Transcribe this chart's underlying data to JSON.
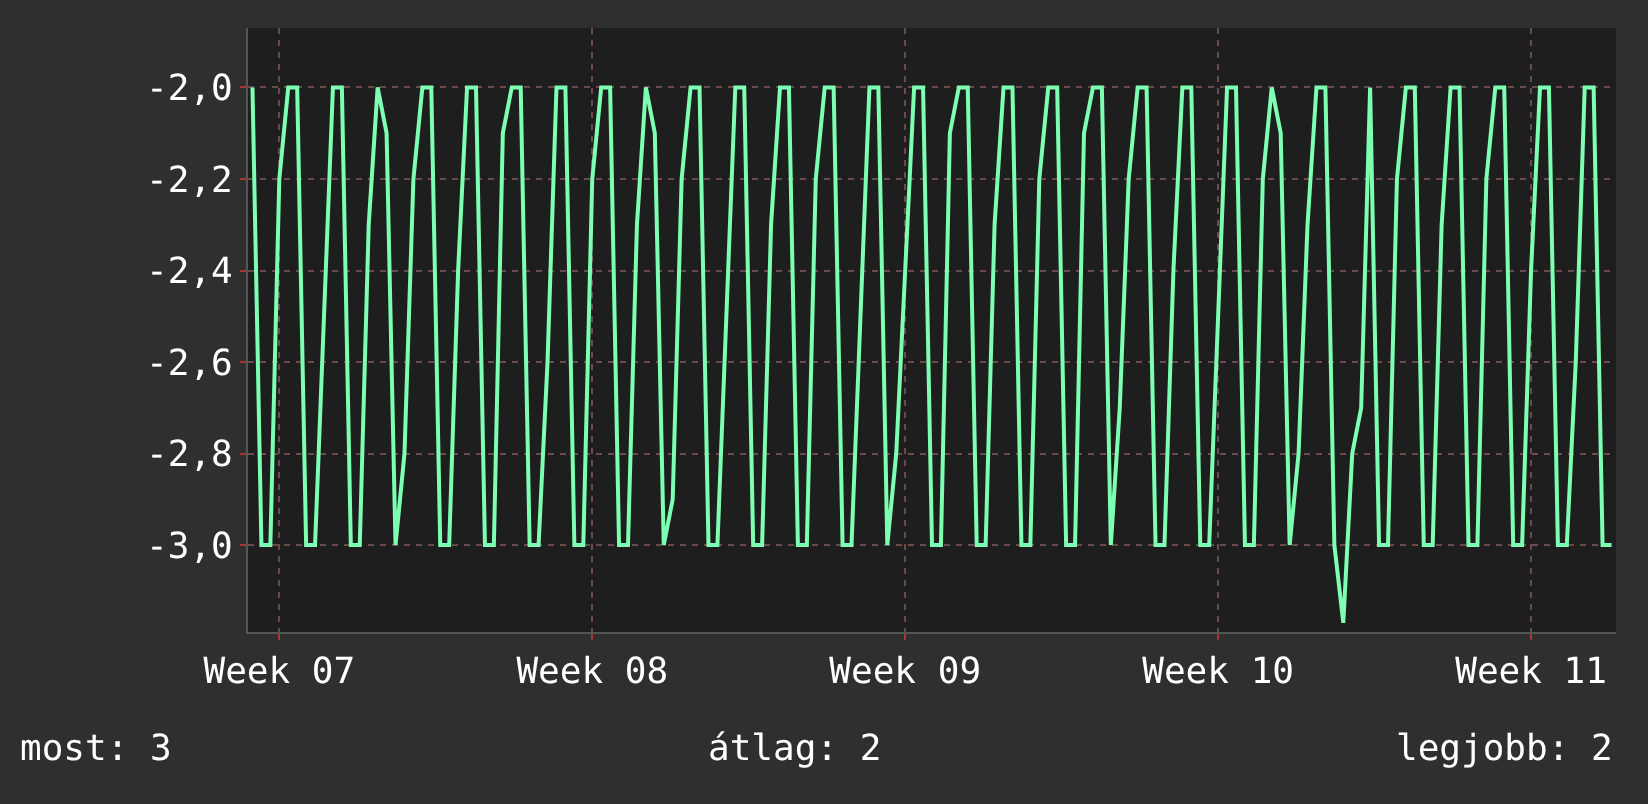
{
  "chart_data": {
    "type": "line",
    "categories": [
      null,
      null,
      null,
      "Week 07",
      null,
      null,
      null,
      null,
      null,
      null,
      null,
      null,
      null,
      null,
      null,
      null,
      null,
      null,
      null,
      null,
      null,
      null,
      null,
      null,
      null,
      null,
      null,
      null,
      null,
      null,
      null,
      null,
      null,
      null,
      null,
      null,
      null,
      null,
      "Week 08",
      null,
      null,
      null,
      null,
      null,
      null,
      null,
      null,
      null,
      null,
      null,
      null,
      null,
      null,
      null,
      null,
      null,
      null,
      null,
      null,
      null,
      null,
      null,
      null,
      null,
      null,
      null,
      null,
      null,
      null,
      null,
      null,
      null,
      null,
      "Week 09",
      null,
      null,
      null,
      null,
      null,
      null,
      null,
      null,
      null,
      null,
      null,
      null,
      null,
      null,
      null,
      null,
      null,
      null,
      null,
      null,
      null,
      null,
      null,
      null,
      null,
      null,
      null,
      null,
      null,
      null,
      null,
      null,
      null,
      null,
      "Week 10",
      null,
      null,
      null,
      null,
      null,
      null,
      null,
      null,
      null,
      null,
      null,
      null,
      null,
      null,
      null,
      null,
      null,
      null,
      null,
      null,
      null,
      null,
      null,
      null,
      null,
      null,
      null,
      null,
      null,
      null,
      null,
      null,
      null,
      null,
      "Week 11",
      null,
      null,
      null,
      null,
      null,
      null,
      null,
      null,
      null
    ],
    "series": [
      {
        "color": "#7dffb3",
        "values": [
          -2.0,
          -3.0,
          -3.0,
          -2.2,
          -2.0,
          -2.0,
          -3.0,
          -3.0,
          -2.5,
          -2.0,
          -2.0,
          -3.0,
          -3.0,
          -2.3,
          -2.0,
          -2.1,
          -3.0,
          -2.8,
          -2.2,
          -2.0,
          -2.0,
          -3.0,
          -3.0,
          -2.4,
          -2.0,
          -2.0,
          -3.0,
          -3.0,
          -2.1,
          -2.0,
          -2.0,
          -3.0,
          -3.0,
          -2.6,
          -2.0,
          -2.0,
          -3.0,
          -3.0,
          -2.2,
          -2.0,
          -2.0,
          -3.0,
          -3.0,
          -2.3,
          -2.0,
          -2.1,
          -3.0,
          -2.9,
          -2.2,
          -2.0,
          -2.0,
          -3.0,
          -3.0,
          -2.5,
          -2.0,
          -2.0,
          -3.0,
          -3.0,
          -2.3,
          -2.0,
          -2.0,
          -3.0,
          -3.0,
          -2.2,
          -2.0,
          -2.0,
          -3.0,
          -3.0,
          -2.5,
          -2.0,
          -2.0,
          -3.0,
          -2.8,
          -2.4,
          -2.0,
          -2.0,
          -3.0,
          -3.0,
          -2.1,
          -2.0,
          -2.0,
          -3.0,
          -3.0,
          -2.3,
          -2.0,
          -2.0,
          -3.0,
          -3.0,
          -2.2,
          -2.0,
          -2.0,
          -3.0,
          -3.0,
          -2.1,
          -2.0,
          -2.0,
          -3.0,
          -2.7,
          -2.2,
          -2.0,
          -2.0,
          -3.0,
          -3.0,
          -2.4,
          -2.0,
          -2.0,
          -3.0,
          -3.0,
          -2.5,
          -2.0,
          -2.0,
          -3.0,
          -3.0,
          -2.2,
          -2.0,
          -2.1,
          -3.0,
          -2.8,
          -2.3,
          -2.0,
          -2.0,
          -3.0,
          -3.17,
          -2.8,
          -2.7,
          -2.0,
          -3.0,
          -3.0,
          -2.2,
          -2.0,
          -2.0,
          -3.0,
          -3.0,
          -2.3,
          -2.0,
          -2.0,
          -3.0,
          -3.0,
          -2.2,
          -2.0,
          -2.0,
          -3.0,
          -3.0,
          -2.4,
          -2.0,
          -2.0,
          -3.0,
          -3.0,
          -2.6,
          -2.0,
          -2.0,
          -3.0,
          -3.0
        ]
      }
    ],
    "ylim": [
      -3.19,
      -1.87
    ],
    "yticks": [
      {
        "value": -3.0,
        "label": "-3,0"
      },
      {
        "value": -2.8,
        "label": "-2,8"
      },
      {
        "value": -2.6,
        "label": "-2,6"
      },
      {
        "value": -2.4,
        "label": "-2,4"
      },
      {
        "value": -2.2,
        "label": "-2,2"
      },
      {
        "value": -2.0,
        "label": "-2,0"
      }
    ],
    "grid": true,
    "line_style": "solid",
    "annotations": [
      "most: 3",
      "átlag: 2",
      "legjobb: 2"
    ]
  }
}
